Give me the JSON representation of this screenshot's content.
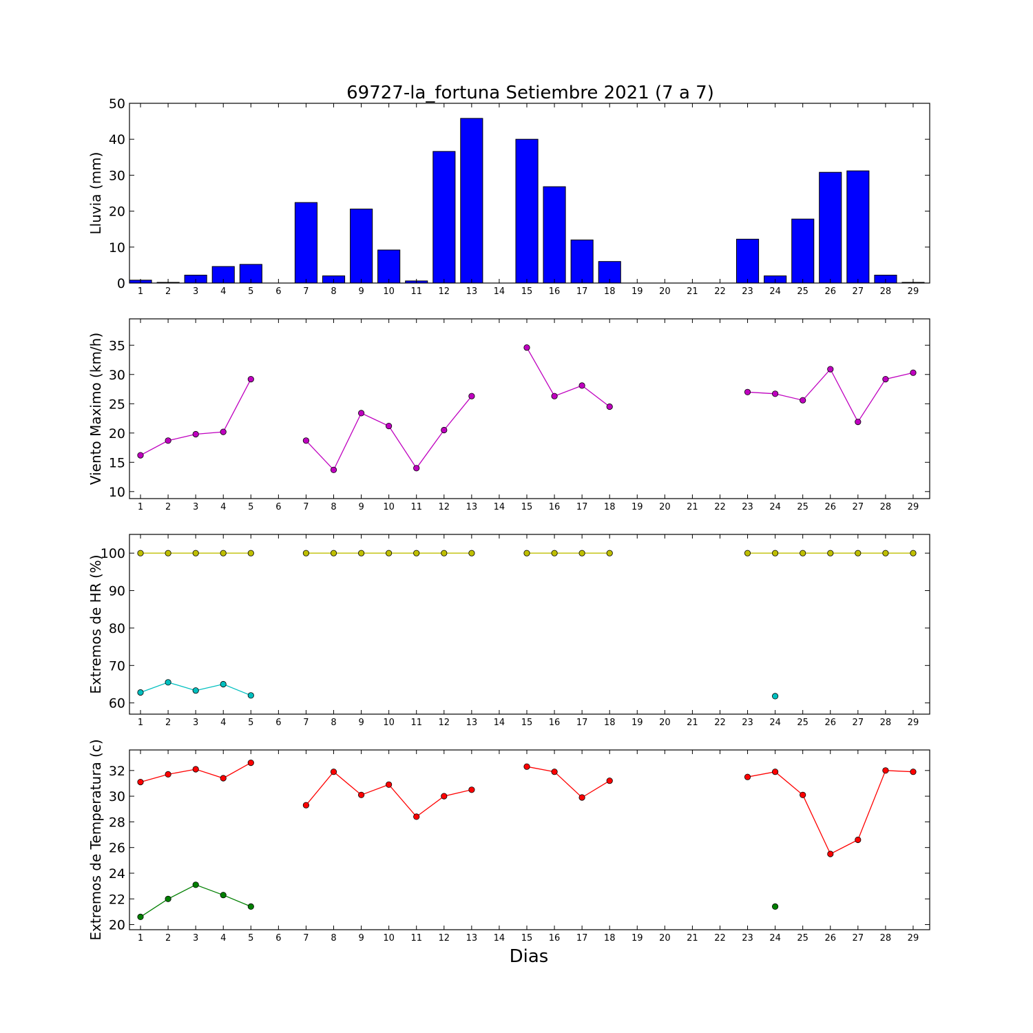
{
  "title": "69727-la_fortuna Setiembre 2021  (7 a 7)",
  "xlabel": "Dias",
  "days": [
    1,
    2,
    3,
    4,
    5,
    6,
    7,
    8,
    9,
    10,
    11,
    12,
    13,
    14,
    15,
    16,
    17,
    18,
    19,
    20,
    21,
    22,
    23,
    24,
    25,
    26,
    27,
    28,
    29
  ],
  "colors": {
    "rain_bar": "#0000ff",
    "wind": "#bf00bf",
    "hr_max": "#bfbf00",
    "hr_min": "#00bfbf",
    "temp_max": "#ff0000",
    "temp_min": "#007f00"
  },
  "chart_data": [
    {
      "type": "bar",
      "ylabel": "Lluvia (mm)",
      "ylim": [
        0,
        50
      ],
      "yticks": [
        0,
        10,
        20,
        30,
        40,
        50
      ],
      "x": [
        1,
        2,
        3,
        4,
        5,
        6,
        7,
        8,
        9,
        10,
        11,
        12,
        13,
        14,
        15,
        16,
        17,
        18,
        19,
        20,
        21,
        22,
        23,
        24,
        25,
        26,
        27,
        28,
        29
      ],
      "values": [
        0.8,
        0.2,
        2.2,
        4.6,
        5.2,
        0,
        22.4,
        2.0,
        20.6,
        9.2,
        0.6,
        36.6,
        45.8,
        0,
        40.0,
        26.8,
        12.0,
        6.0,
        0,
        0,
        0,
        0,
        12.2,
        2.0,
        17.8,
        30.8,
        31.2,
        2.2,
        0.2
      ]
    },
    {
      "type": "line",
      "ylabel": "Viento Maximo (km/h)",
      "ylim": [
        8.8,
        39.5
      ],
      "yticks": [
        10,
        15,
        20,
        25,
        30,
        35
      ],
      "x": [
        1,
        2,
        3,
        4,
        5,
        6,
        7,
        8,
        9,
        10,
        11,
        12,
        13,
        14,
        15,
        16,
        17,
        18,
        19,
        20,
        21,
        22,
        23,
        24,
        25,
        26,
        27,
        28,
        29
      ],
      "series": [
        {
          "values": [
            16.2,
            18.7,
            19.8,
            20.2,
            29.2,
            null,
            18.7,
            13.7,
            23.4,
            21.2,
            14.0,
            20.5,
            26.3,
            null,
            34.6,
            26.3,
            28.1,
            24.5,
            null,
            null,
            null,
            null,
            27.0,
            26.7,
            25.6,
            30.9,
            21.9,
            29.2,
            30.3
          ]
        }
      ]
    },
    {
      "type": "line",
      "ylabel": "Extremos de HR (%)",
      "ylim": [
        57,
        105
      ],
      "yticks": [
        60,
        70,
        80,
        90,
        100
      ],
      "x": [
        1,
        2,
        3,
        4,
        5,
        6,
        7,
        8,
        9,
        10,
        11,
        12,
        13,
        14,
        15,
        16,
        17,
        18,
        19,
        20,
        21,
        22,
        23,
        24,
        25,
        26,
        27,
        28,
        29
      ],
      "series": [
        {
          "values": [
            100,
            100,
            100,
            100,
            100,
            null,
            100,
            100,
            100,
            100,
            100,
            100,
            100,
            null,
            100,
            100,
            100,
            100,
            null,
            null,
            null,
            null,
            100,
            100,
            100,
            100,
            100,
            100,
            100
          ]
        },
        {
          "values": [
            62.8,
            65.5,
            63.3,
            65.0,
            62.0,
            null,
            null,
            null,
            null,
            null,
            null,
            null,
            null,
            null,
            null,
            null,
            null,
            null,
            null,
            null,
            null,
            null,
            null,
            61.8,
            null,
            null,
            null,
            null,
            null
          ]
        }
      ]
    },
    {
      "type": "line",
      "ylabel": "Extremos de Temperatura (c)",
      "ylim": [
        19.6,
        33.6
      ],
      "yticks": [
        20,
        22,
        24,
        26,
        28,
        30,
        32
      ],
      "x": [
        1,
        2,
        3,
        4,
        5,
        6,
        7,
        8,
        9,
        10,
        11,
        12,
        13,
        14,
        15,
        16,
        17,
        18,
        19,
        20,
        21,
        22,
        23,
        24,
        25,
        26,
        27,
        28,
        29
      ],
      "series": [
        {
          "values": [
            31.1,
            31.7,
            32.1,
            31.4,
            32.6,
            null,
            29.3,
            31.9,
            30.1,
            30.9,
            28.4,
            30.0,
            30.5,
            null,
            32.3,
            31.9,
            29.9,
            31.2,
            null,
            null,
            null,
            null,
            31.5,
            31.9,
            30.1,
            25.5,
            26.6,
            32.0,
            31.9
          ]
        },
        {
          "values": [
            20.6,
            22.0,
            23.1,
            22.3,
            21.4,
            null,
            null,
            null,
            null,
            null,
            null,
            null,
            null,
            null,
            null,
            null,
            null,
            null,
            null,
            null,
            null,
            null,
            null,
            21.4,
            null,
            null,
            null,
            null,
            null
          ]
        }
      ]
    }
  ]
}
